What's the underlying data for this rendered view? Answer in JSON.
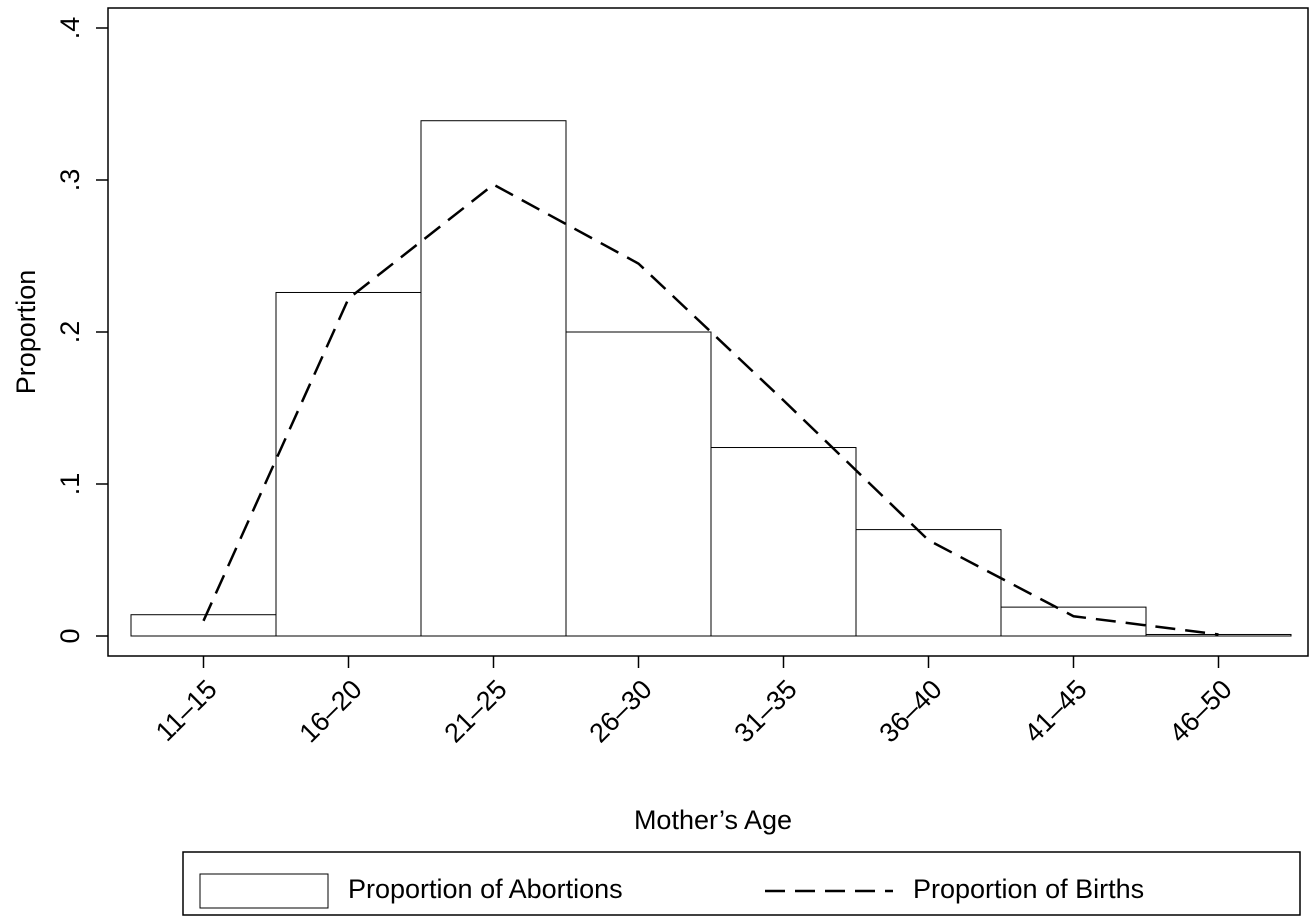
{
  "chart_data": {
    "type": "bar_line",
    "x_label": "Mother’s Age",
    "y_label": "Proportion",
    "categories": [
      "11–15",
      "16–20",
      "21–25",
      "26–30",
      "31–35",
      "36–40",
      "41–45",
      "46–50"
    ],
    "series": [
      {
        "name": "Proportion of Abortions",
        "type": "bar",
        "color": "#ffffff",
        "values": [
          0.014,
          0.226,
          0.339,
          0.2,
          0.124,
          0.07,
          0.019,
          0.001
        ]
      },
      {
        "name": "Proportion of Births",
        "type": "line",
        "color": "#000000",
        "values": [
          0.01,
          0.222,
          0.297,
          0.245,
          0.155,
          0.063,
          0.013,
          0.001
        ]
      }
    ],
    "ylim": [
      0,
      0.4
    ],
    "yticks": [
      0,
      {
        "value": 0.1,
        "label": ".1"
      },
      {
        "value": 0.2,
        "label": ".2"
      },
      {
        "value": 0.3,
        "label": ".3"
      },
      {
        "value": 0.4,
        "label": ".4"
      }
    ],
    "grid": false,
    "legend_position": "bottom"
  }
}
